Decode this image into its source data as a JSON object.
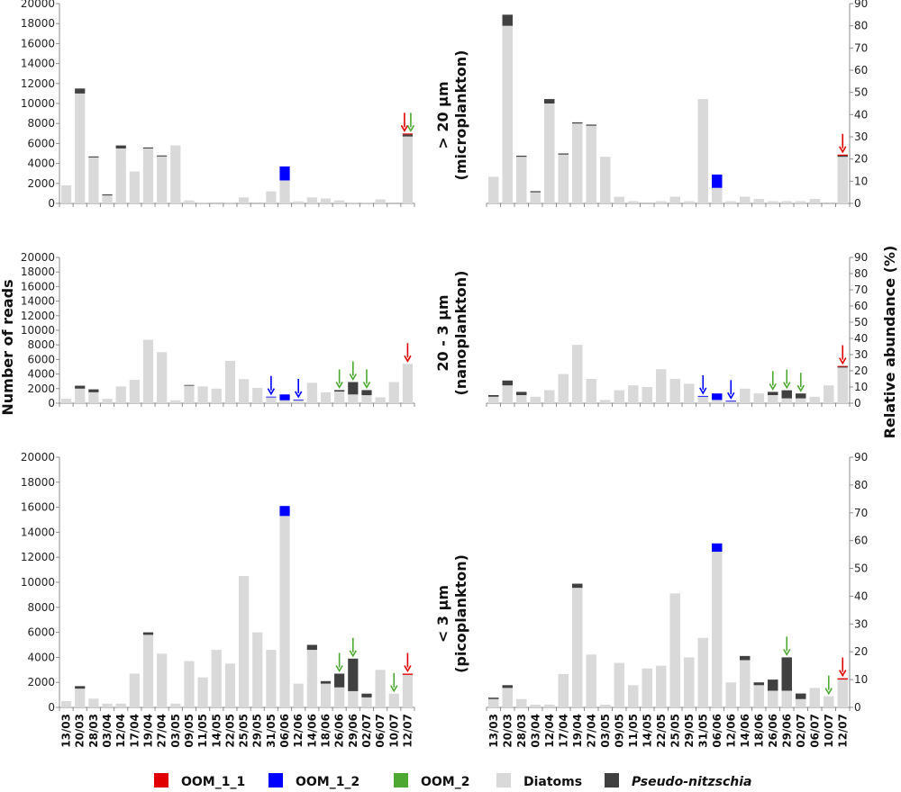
{
  "colors": {
    "diatoms": "#d9d9d9",
    "pseudo": "#404040",
    "oom_1_1": "#e00000",
    "oom_1_2": "#0000ff",
    "oom_2": "#4da832",
    "axis": "#8c8c8c"
  },
  "chart_data": {
    "type": "bar",
    "stacked": true,
    "categories": [
      "13/03",
      "20/03",
      "28/03",
      "03/04",
      "12/04",
      "17/04",
      "19/04",
      "27/04",
      "03/05",
      "09/05",
      "11/05",
      "14/05",
      "22/05",
      "25/05",
      "29/05",
      "31/05",
      "06/06",
      "12/06",
      "14/06",
      "18/06",
      "26/06",
      "29/06",
      "02/07",
      "06/07",
      "10/07",
      "12/07"
    ],
    "ylabel_left": "Number of reads",
    "ylabel_right": "Relative abundance (%)",
    "left_axis": {
      "ylim": [
        0,
        20000
      ],
      "ticks": [
        "0",
        "2000",
        "4000",
        "6000",
        "8000",
        "10000",
        "12000",
        "14000",
        "16000",
        "18000",
        "20000"
      ]
    },
    "right_axis": {
      "ylim": [
        0,
        90
      ],
      "ticks": [
        "0",
        "10",
        "20",
        "30",
        "40",
        "50",
        "60",
        "70",
        "80",
        "90"
      ]
    },
    "legend": [
      {
        "key": "oom_1_1",
        "label": "OOM_1_1"
      },
      {
        "key": "oom_1_2",
        "label": "OOM_1_2"
      },
      {
        "key": "oom_2",
        "label": "OOM_2"
      },
      {
        "key": "diatoms",
        "label": "Diatoms"
      },
      {
        "key": "pseudo",
        "label": "Pseudo-nitzschia"
      }
    ],
    "rows": [
      {
        "title_line1": "> 20 µm",
        "title_line2": "(microplankton)",
        "reads": {
          "diatoms": [
            1800,
            11000,
            4600,
            800,
            5500,
            3200,
            5500,
            4700,
            5800,
            300,
            100,
            0,
            100,
            600,
            0,
            1200,
            2300,
            200,
            600,
            500,
            300,
            100,
            100,
            400,
            0,
            6700
          ],
          "pseudo": [
            0,
            500,
            100,
            100,
            300,
            0,
            100,
            100,
            0,
            0,
            0,
            0,
            0,
            0,
            0,
            0,
            0,
            0,
            0,
            0,
            0,
            0,
            0,
            0,
            0,
            200
          ],
          "oom_1_2": [
            0,
            0,
            0,
            0,
            0,
            0,
            0,
            0,
            0,
            0,
            0,
            0,
            0,
            0,
            0,
            0,
            1400,
            0,
            0,
            0,
            0,
            0,
            0,
            0,
            0,
            0
          ],
          "oom_1_1": [
            0,
            0,
            0,
            0,
            0,
            0,
            0,
            0,
            0,
            0,
            0,
            0,
            0,
            0,
            0,
            0,
            0,
            0,
            0,
            0,
            0,
            0,
            0,
            0,
            0,
            100
          ]
        },
        "arrows_reads": [
          {
            "index": 25,
            "colors": [
              "oom_1_1",
              "oom_2"
            ]
          }
        ],
        "rel": {
          "diatoms": [
            12,
            80,
            21,
            5,
            45,
            22,
            36,
            35,
            21,
            3,
            1,
            0,
            1,
            3,
            1,
            47,
            7,
            1,
            3,
            2,
            1,
            1,
            1,
            2,
            0,
            21
          ],
          "pseudo": [
            0,
            5,
            0.5,
            0.5,
            2,
            0.5,
            0.5,
            0.5,
            0,
            0,
            0,
            0,
            0,
            0,
            0,
            0,
            0,
            0,
            0,
            0,
            0,
            0,
            0,
            0,
            0,
            0.5
          ],
          "oom_1_2": [
            0,
            0,
            0,
            0,
            0,
            0,
            0,
            0,
            0,
            0,
            0,
            0,
            0,
            0,
            0,
            0,
            6,
            0,
            0,
            0,
            0,
            0,
            0,
            0,
            0,
            0
          ],
          "oom_1_1": [
            0,
            0,
            0,
            0,
            0,
            0,
            0,
            0,
            0,
            0,
            0,
            0,
            0,
            0,
            0,
            0,
            0,
            0,
            0,
            0,
            0,
            0,
            0,
            0,
            0,
            0.5
          ]
        },
        "arrows_rel": [
          {
            "index": 25,
            "colors": [
              "oom_1_1"
            ]
          }
        ]
      },
      {
        "title_line1": "20 - 3 µm",
        "title_line2": "(nanoplankton)",
        "reads": {
          "diatoms": [
            600,
            2000,
            1500,
            600,
            2300,
            3200,
            8700,
            7000,
            400,
            2400,
            2300,
            2000,
            5800,
            3300,
            2100,
            800,
            400,
            400,
            2800,
            1500,
            1600,
            1200,
            1100,
            800,
            2900,
            5400
          ],
          "pseudo": [
            0,
            400,
            400,
            0,
            0,
            0,
            0,
            0,
            0,
            100,
            0,
            0,
            0,
            0,
            0,
            0,
            0,
            0,
            0,
            0,
            200,
            1700,
            700,
            0,
            0,
            0
          ],
          "oom_1_2": [
            0,
            0,
            0,
            0,
            0,
            0,
            0,
            0,
            0,
            0,
            0,
            0,
            0,
            0,
            0,
            100,
            800,
            100,
            0,
            0,
            0,
            0,
            0,
            0,
            0,
            0
          ],
          "oom_1_1": [
            0,
            0,
            0,
            0,
            0,
            0,
            0,
            0,
            0,
            0,
            0,
            0,
            0,
            0,
            0,
            0,
            0,
            0,
            0,
            0,
            0,
            0,
            0,
            0,
            0,
            0
          ]
        },
        "arrows_reads": [
          {
            "index": 15,
            "colors": [
              "oom_1_2"
            ]
          },
          {
            "index": 17,
            "colors": [
              "oom_1_2"
            ]
          },
          {
            "index": 20,
            "colors": [
              "oom_2"
            ]
          },
          {
            "index": 21,
            "colors": [
              "oom_2"
            ]
          },
          {
            "index": 22,
            "colors": [
              "oom_2"
            ]
          },
          {
            "index": 25,
            "colors": [
              "oom_1_1"
            ]
          }
        ],
        "rel": {
          "diatoms": [
            4,
            11,
            5,
            4,
            8,
            18,
            36,
            15,
            2,
            8,
            11,
            10,
            21,
            15,
            12,
            4,
            2,
            1,
            9,
            6,
            5,
            3,
            3,
            4,
            11,
            22
          ],
          "pseudo": [
            1,
            3,
            2,
            0,
            0,
            0,
            0,
            0,
            0,
            0,
            0,
            0,
            0,
            0,
            0,
            0,
            0,
            0,
            0,
            0,
            2,
            5,
            3,
            0,
            0,
            0.5
          ],
          "oom_1_2": [
            0,
            0,
            0,
            0,
            0,
            0,
            0,
            0,
            0,
            0,
            0,
            0,
            0,
            0,
            0,
            0.5,
            4,
            0.5,
            0,
            0,
            0,
            0,
            0,
            0,
            0,
            0
          ],
          "oom_1_1": [
            0,
            0,
            0,
            0,
            0,
            0,
            0,
            0,
            0,
            0,
            0,
            0,
            0,
            0,
            0,
            0,
            0,
            0,
            0,
            0,
            0,
            0,
            0,
            0,
            0,
            0.5
          ]
        },
        "arrows_rel": [
          {
            "index": 15,
            "colors": [
              "oom_1_2"
            ]
          },
          {
            "index": 17,
            "colors": [
              "oom_1_2"
            ]
          },
          {
            "index": 20,
            "colors": [
              "oom_2"
            ]
          },
          {
            "index": 21,
            "colors": [
              "oom_2"
            ]
          },
          {
            "index": 22,
            "colors": [
              "oom_2"
            ]
          },
          {
            "index": 25,
            "colors": [
              "oom_1_1"
            ]
          }
        ]
      },
      {
        "title_line1": "< 3 µm",
        "title_line2": "(picoplankton)",
        "reads": {
          "diatoms": [
            500,
            1500,
            700,
            300,
            300,
            2700,
            5800,
            4300,
            300,
            3700,
            2400,
            4600,
            3500,
            10500,
            6000,
            4600,
            15300,
            1900,
            4600,
            1900,
            1600,
            1300,
            800,
            3000,
            1100,
            2600
          ],
          "pseudo": [
            0,
            200,
            0,
            0,
            0,
            0,
            200,
            0,
            0,
            0,
            0,
            0,
            0,
            0,
            0,
            0,
            0,
            0,
            400,
            200,
            1100,
            2600,
            300,
            0,
            0,
            0
          ],
          "oom_1_2": [
            0,
            0,
            0,
            0,
            0,
            0,
            0,
            0,
            0,
            0,
            0,
            0,
            0,
            0,
            0,
            0,
            800,
            0,
            0,
            0,
            0,
            0,
            0,
            0,
            0,
            0
          ],
          "oom_1_1": [
            0,
            0,
            0,
            0,
            0,
            0,
            0,
            0,
            0,
            0,
            0,
            0,
            0,
            0,
            0,
            0,
            0,
            0,
            0,
            0,
            0,
            0,
            0,
            0,
            0,
            100
          ]
        },
        "arrows_reads": [
          {
            "index": 20,
            "colors": [
              "oom_2"
            ]
          },
          {
            "index": 21,
            "colors": [
              "oom_2"
            ]
          },
          {
            "index": 24,
            "colors": [
              "oom_2"
            ]
          },
          {
            "index": 25,
            "colors": [
              "oom_1_1"
            ]
          }
        ],
        "rel": {
          "diatoms": [
            3,
            7,
            3,
            1,
            1,
            12,
            43,
            19,
            1,
            16,
            8,
            14,
            15,
            41,
            18,
            25,
            56,
            9,
            17,
            8,
            6,
            6,
            3,
            7,
            4,
            10
          ],
          "pseudo": [
            0.5,
            1,
            0,
            0,
            0,
            0,
            1.5,
            0,
            0,
            0,
            0,
            0,
            0,
            0,
            0,
            0,
            0,
            0,
            1.5,
            1,
            4,
            12,
            2,
            0,
            0,
            0
          ],
          "oom_1_2": [
            0,
            0,
            0,
            0,
            0,
            0,
            0,
            0,
            0,
            0,
            0,
            0,
            0,
            0,
            0,
            0,
            3,
            0,
            0,
            0,
            0,
            0,
            0,
            0,
            0,
            0
          ],
          "oom_1_1": [
            0,
            0,
            0,
            0,
            0,
            0,
            0,
            0,
            0,
            0,
            0,
            0,
            0,
            0,
            0,
            0,
            0,
            0,
            0,
            0,
            0,
            0,
            0,
            0,
            0,
            0.5
          ]
        },
        "arrows_rel": [
          {
            "index": 21,
            "colors": [
              "oom_2"
            ]
          },
          {
            "index": 24,
            "colors": [
              "oom_2"
            ]
          },
          {
            "index": 25,
            "colors": [
              "oom_1_1"
            ]
          }
        ]
      }
    ]
  }
}
